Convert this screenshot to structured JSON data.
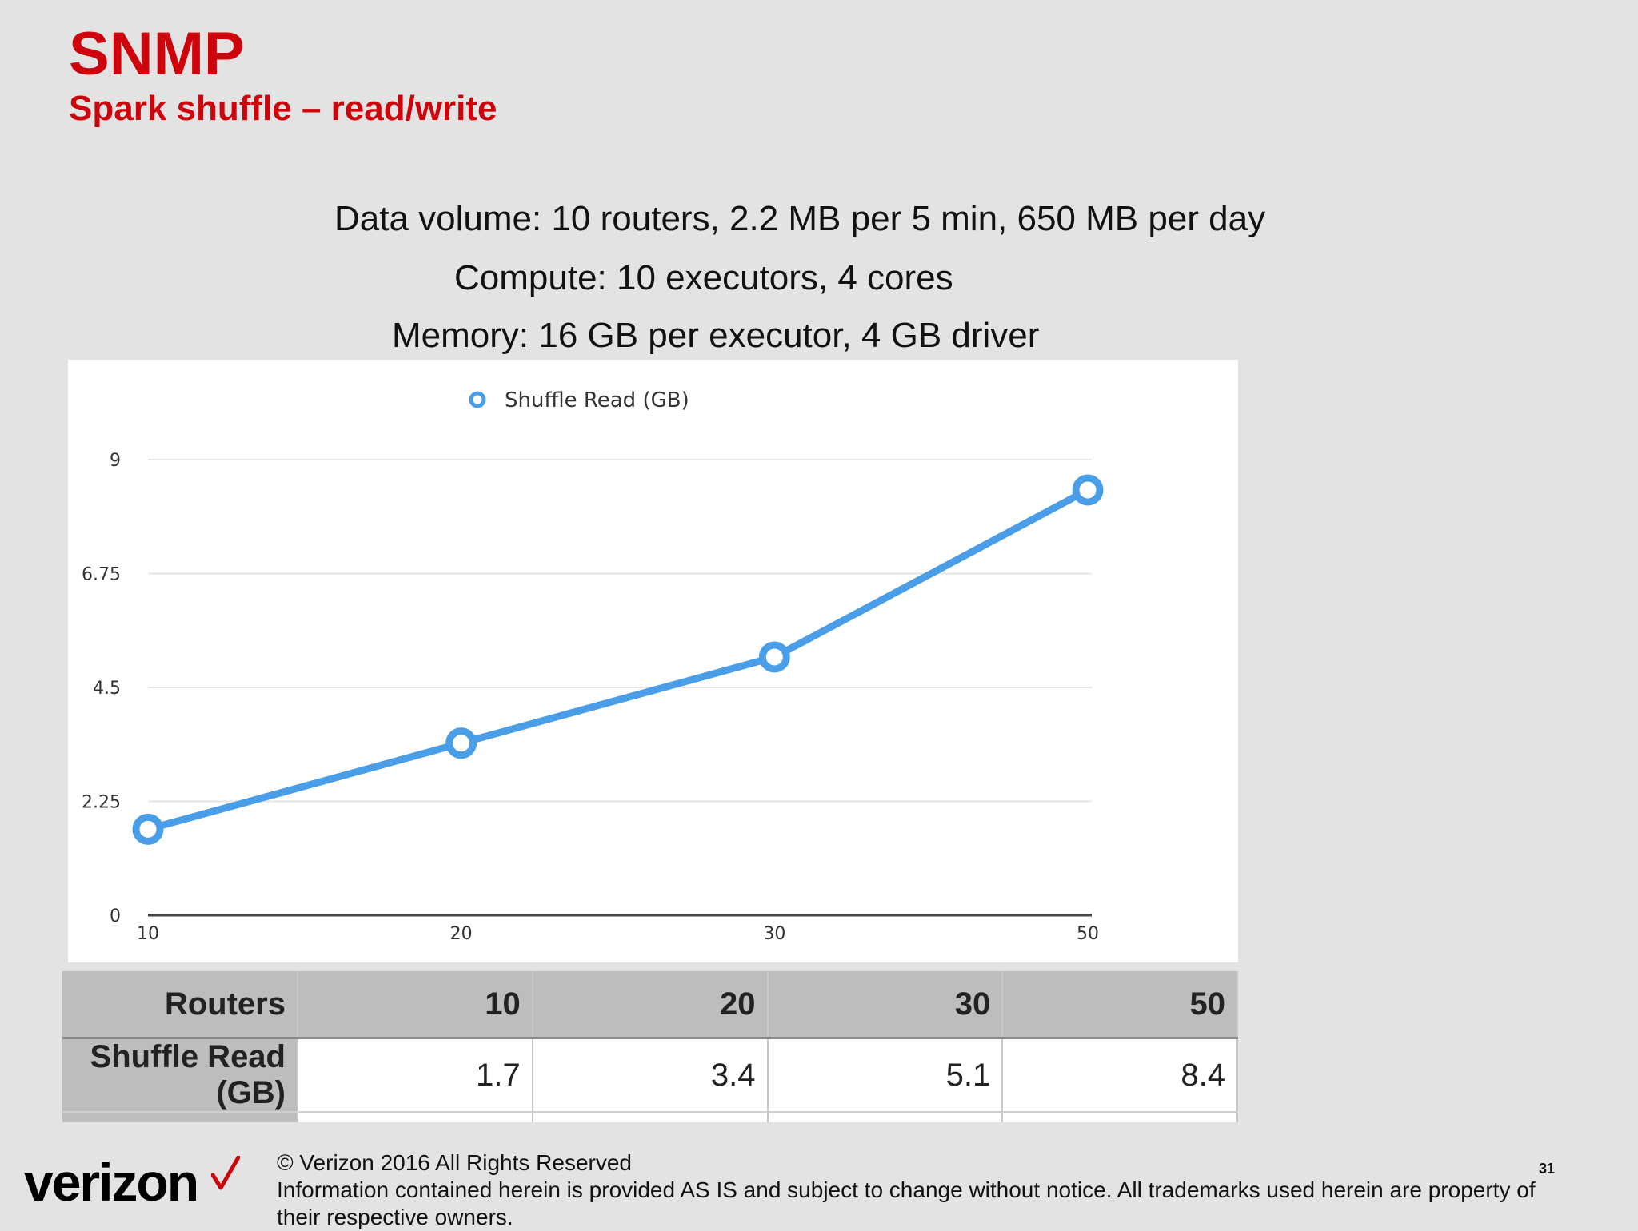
{
  "slide": {
    "title": "SNMP",
    "subtitle": "Spark shuffle – read/write",
    "info_lines": [
      "Data volume: 10 routers, 2.2 MB per 5 min, 650 MB per day",
      "Compute: 10 executors, 4 cores",
      "Memory: 16 GB per executor, 4 GB driver"
    ],
    "page_number": "31"
  },
  "chart_data": {
    "type": "line",
    "categories": [
      "10",
      "20",
      "30",
      "50"
    ],
    "series": [
      {
        "name": "Shuffle Read (GB)",
        "values": [
          1.7,
          3.4,
          5.1,
          8.4
        ],
        "color": "#4a9ee8"
      }
    ],
    "yticks": [
      "0",
      "2.25",
      "4.5",
      "6.75",
      "9"
    ],
    "ylim": [
      0,
      9
    ],
    "grid": true,
    "legend": "top-center"
  },
  "table": {
    "header_label": "Routers",
    "header_values": [
      "10",
      "20",
      "30",
      "50"
    ],
    "row_label": "Shuffle Read (GB)",
    "row_values": [
      "1.7",
      "3.4",
      "5.1",
      "8.4"
    ]
  },
  "footer": {
    "logo_text": "verizon",
    "copyright": "© Verizon 2016 All Rights Reserved",
    "notice": "Information contained herein is provided AS IS and subject to change without notice.  All trademarks used herein are property of their respective owners."
  },
  "colors": {
    "brand_red": "#cd040b",
    "line_blue": "#4a9ee8"
  }
}
